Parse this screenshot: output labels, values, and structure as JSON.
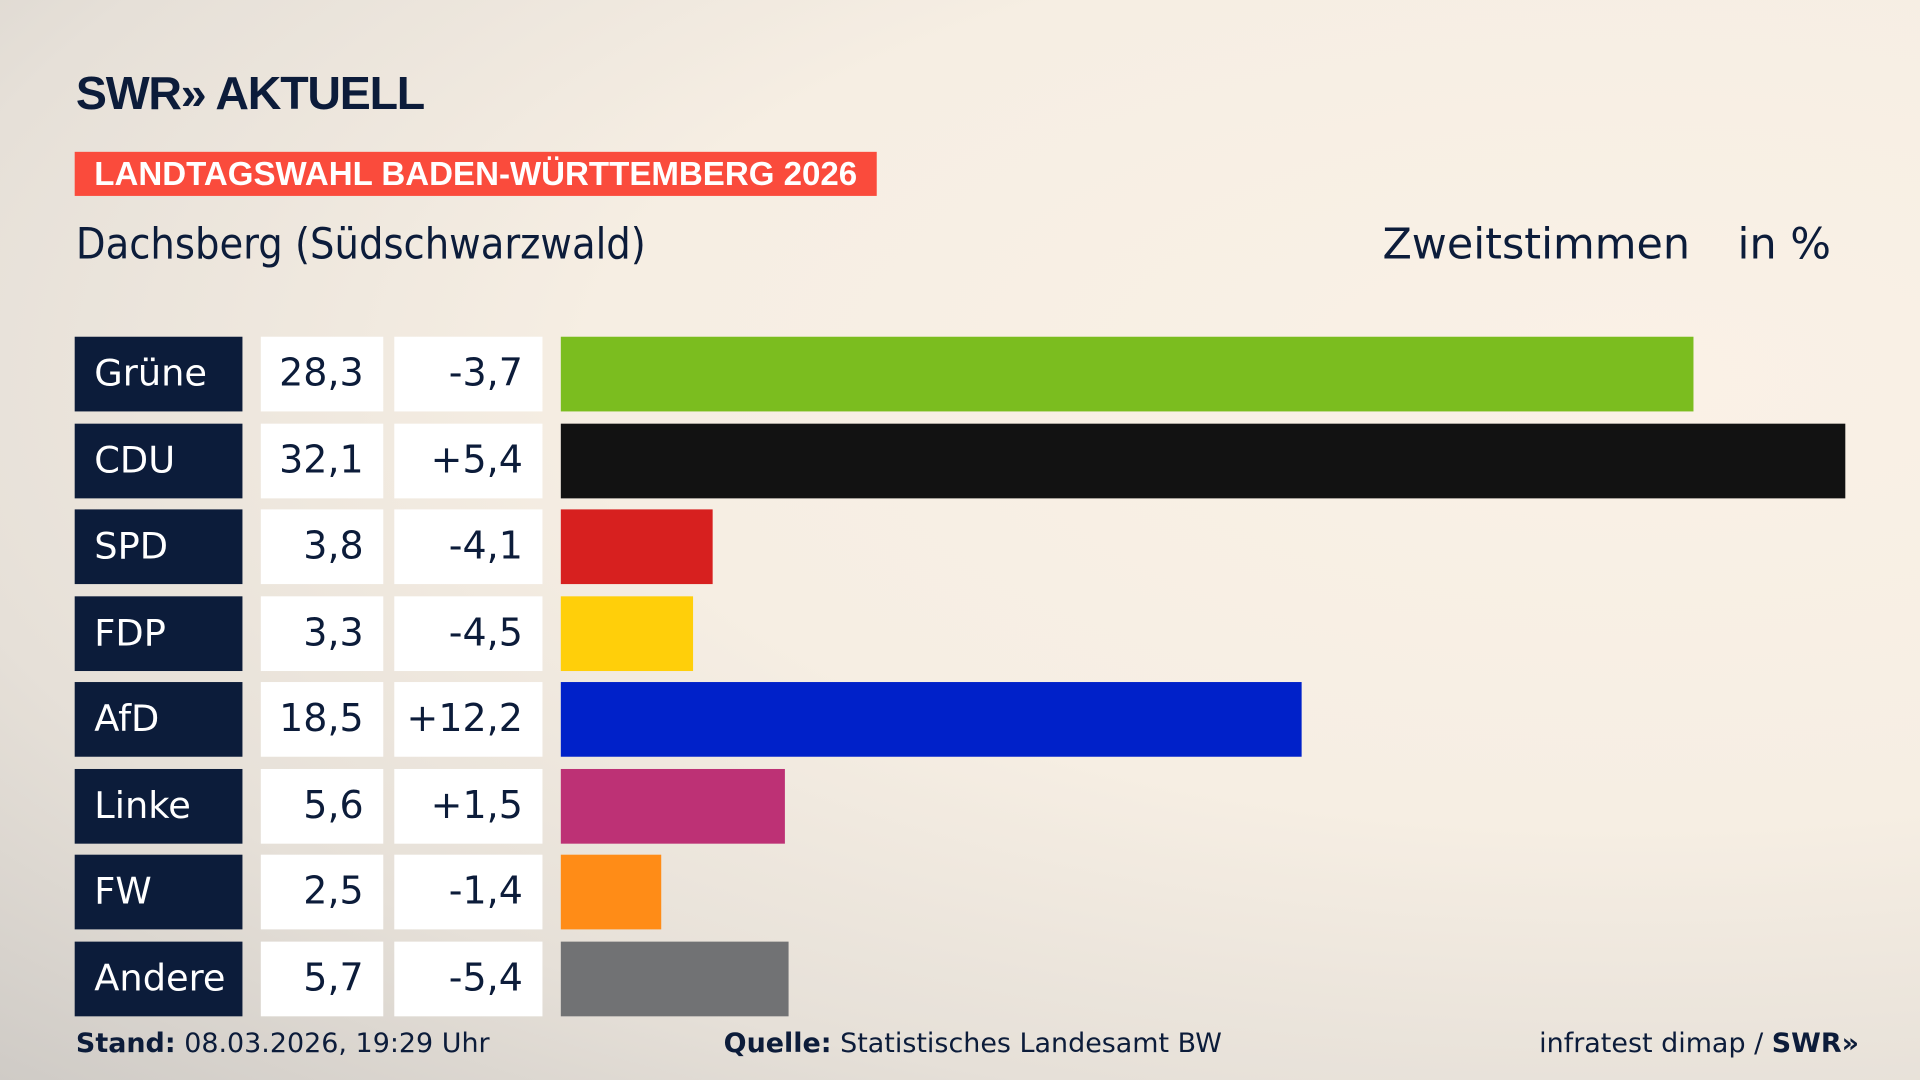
{
  "header": {
    "logo": "SWR» AKTUELL",
    "banner": "LANDTAGSWAHL BADEN-WÜRTTEMBERG 2026",
    "place": "Dachsberg (Südschwarzwald)",
    "measure": "Zweitstimmen",
    "unit": "in %"
  },
  "chart_data": {
    "type": "bar",
    "orientation": "horizontal",
    "categories": [
      "Grüne",
      "CDU",
      "SPD",
      "FDP",
      "AfD",
      "Linke",
      "FW",
      "Andere"
    ],
    "values": [
      28.3,
      32.1,
      3.8,
      3.3,
      18.5,
      5.6,
      2.5,
      5.7
    ],
    "value_labels": [
      "28,3",
      "32,1",
      "3,8",
      "3,3",
      "18,5",
      "5,6",
      "2,5",
      "5,7"
    ],
    "diff_labels": [
      "-3,7",
      "+5,4",
      "-4,1",
      "-4,5",
      "+12,2",
      "+1,5",
      "-1,4",
      "-5,4"
    ],
    "colors": [
      "#7bbd1f",
      "#121212",
      "#d7201f",
      "#ffcf0a",
      "#0021c9",
      "#bd3175",
      "#ff8c17",
      "#717274"
    ],
    "xlim": [
      0,
      32.1
    ]
  },
  "footer": {
    "stand_label": "Stand:",
    "stand_value": "08.03.2026, 19:29 Uhr",
    "source_label": "Quelle:",
    "source_value": "Statistisches Landesamt BW",
    "credit": "infratest dimap / ",
    "credit_logo": "SWR»"
  }
}
